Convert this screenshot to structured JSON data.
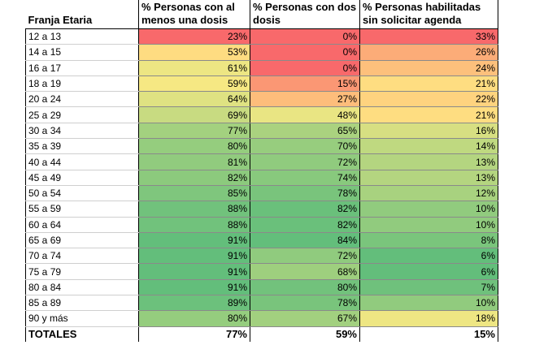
{
  "colors": {
    "red": "#f8696b",
    "yellow": "#ffeb84",
    "green": "#63be7b"
  },
  "headers": {
    "age": "Franja Etaria",
    "one_dose": "% Personas con al menos una dosis",
    "two_doses": "% Personas con dos dosis",
    "no_appointment": "% Personas habilitadas sin solicitar agenda"
  },
  "rows": [
    {
      "age": "12 a 13",
      "one_dose": "23%",
      "two_doses": "0%",
      "no_appointment": "33%"
    },
    {
      "age": "14 a 15",
      "one_dose": "53%",
      "two_doses": "0%",
      "no_appointment": "26%"
    },
    {
      "age": "16 a 17",
      "one_dose": "61%",
      "two_doses": "0%",
      "no_appointment": "24%"
    },
    {
      "age": "18 a 19",
      "one_dose": "59%",
      "two_doses": "15%",
      "no_appointment": "21%"
    },
    {
      "age": "20 a 24",
      "one_dose": "64%",
      "two_doses": "27%",
      "no_appointment": "22%"
    },
    {
      "age": "25 a 29",
      "one_dose": "69%",
      "two_doses": "48%",
      "no_appointment": "21%"
    },
    {
      "age": "30 a 34",
      "one_dose": "77%",
      "two_doses": "65%",
      "no_appointment": "16%"
    },
    {
      "age": "35 a 39",
      "one_dose": "80%",
      "two_doses": "70%",
      "no_appointment": "14%"
    },
    {
      "age": "40 a 44",
      "one_dose": "81%",
      "two_doses": "72%",
      "no_appointment": "13%"
    },
    {
      "age": "45 a 49",
      "one_dose": "82%",
      "two_doses": "74%",
      "no_appointment": "13%"
    },
    {
      "age": "50 a 54",
      "one_dose": "85%",
      "two_doses": "78%",
      "no_appointment": "12%"
    },
    {
      "age": "55 a 59",
      "one_dose": "88%",
      "two_doses": "82%",
      "no_appointment": "10%"
    },
    {
      "age": "60 a 64",
      "one_dose": "88%",
      "two_doses": "82%",
      "no_appointment": "10%"
    },
    {
      "age": "65 a 69",
      "one_dose": "91%",
      "two_doses": "84%",
      "no_appointment": "8%"
    },
    {
      "age": "70 a 74",
      "one_dose": "91%",
      "two_doses": "72%",
      "no_appointment": "6%"
    },
    {
      "age": "75 a 79",
      "one_dose": "91%",
      "two_doses": "68%",
      "no_appointment": "6%"
    },
    {
      "age": "80 a 84",
      "one_dose": "91%",
      "two_doses": "80%",
      "no_appointment": "7%"
    },
    {
      "age": "85 a 89",
      "one_dose": "89%",
      "two_doses": "78%",
      "no_appointment": "10%"
    },
    {
      "age": "90 y más",
      "one_dose": "80%",
      "two_doses": "67%",
      "no_appointment": "18%"
    }
  ],
  "totals": {
    "label": "TOTALES",
    "one_dose": "77%",
    "two_doses": "59%",
    "no_appointment": "15%"
  }
}
